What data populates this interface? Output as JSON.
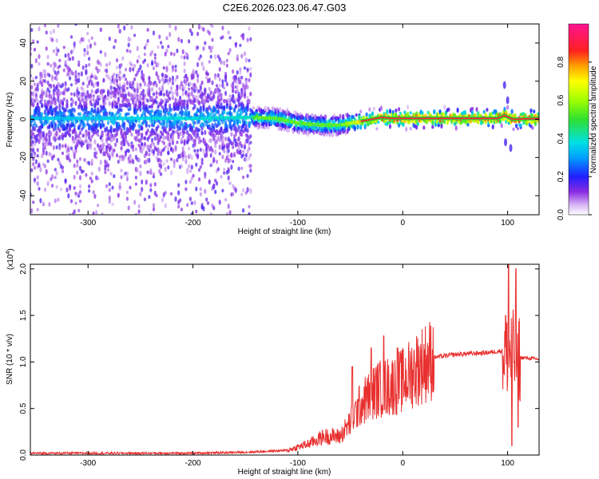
{
  "title": "C2E6.2026.023.06.47.G03",
  "chart_data": [
    {
      "type": "heatmap",
      "xlabel": "Height of straight line (km)",
      "ylabel": "Frequency (Hz)",
      "xlim": [
        -355,
        130
      ],
      "ylim": [
        -50,
        50
      ],
      "x_ticks": [
        -300,
        -200,
        -100,
        0,
        100
      ],
      "y_ticks": [
        -40,
        -20,
        0,
        20,
        40
      ],
      "colorbar": {
        "label": "Normalized spectral amplitude",
        "range": [
          0.0,
          1.0
        ],
        "ticks": [
          0.0,
          0.2,
          0.4,
          0.6,
          0.8
        ]
      },
      "ridge": [
        {
          "x": -355,
          "f": 0.5
        },
        {
          "x": -300,
          "f": 0.5
        },
        {
          "x": -250,
          "f": 0.5
        },
        {
          "x": -200,
          "f": 0.5
        },
        {
          "x": -145,
          "f": 1.0
        },
        {
          "x": -120,
          "f": 0.5
        },
        {
          "x": -100,
          "f": -2.0
        },
        {
          "x": -80,
          "f": -3.0
        },
        {
          "x": -60,
          "f": -3.0
        },
        {
          "x": -40,
          "f": -1.0
        },
        {
          "x": -20,
          "f": 1.0
        },
        {
          "x": -10,
          "f": 0.5
        },
        {
          "x": 0,
          "f": 0.5
        },
        {
          "x": 50,
          "f": 0.5
        },
        {
          "x": 90,
          "f": 0.5
        },
        {
          "x": 97,
          "f": 2.0
        },
        {
          "x": 105,
          "f": 0.0
        },
        {
          "x": 130,
          "f": 0.5
        }
      ],
      "ridge_amplitude": [
        {
          "x": -355,
          "a": 0.35
        },
        {
          "x": -145,
          "a": 0.4
        },
        {
          "x": -140,
          "a": 0.55
        },
        {
          "x": -60,
          "a": 0.55
        },
        {
          "x": -40,
          "a": 0.75
        },
        {
          "x": -15,
          "a": 0.9
        },
        {
          "x": 0,
          "a": 0.95
        },
        {
          "x": 130,
          "a": 0.95
        }
      ]
    },
    {
      "type": "line",
      "xlabel": "Height of straight line (km)",
      "ylabel": "SNR (10 * v/v)",
      "y_multiplier_label": "(x10",
      "y_multiplier_exponent": "4",
      "y_multiplier_close": ")",
      "xlim": [
        -355,
        130
      ],
      "ylim": [
        0.0,
        2.05
      ],
      "x_ticks": [
        -300,
        -200,
        -100,
        0,
        100
      ],
      "y_ticks": [
        0.0,
        0.5,
        1.0,
        1.5,
        2.0
      ],
      "y_tick_labels": [
        "0.0",
        "0.5",
        "1.0",
        "1.5",
        "2.0"
      ],
      "series": [
        {
          "color": "#e8302f",
          "envelope": [
            {
              "x": -355,
              "y": 0.02
            },
            {
              "x": -200,
              "y": 0.02
            },
            {
              "x": -150,
              "y": 0.03
            },
            {
              "x": -110,
              "y": 0.05
            },
            {
              "x": -90,
              "y": 0.12
            },
            {
              "x": -75,
              "y": 0.2
            },
            {
              "x": -60,
              "y": 0.2
            },
            {
              "x": -50,
              "y": 0.35
            },
            {
              "x": -40,
              "y": 0.55
            },
            {
              "x": -25,
              "y": 0.7
            },
            {
              "x": -10,
              "y": 0.75
            },
            {
              "x": 0,
              "y": 0.8
            },
            {
              "x": 15,
              "y": 0.95
            },
            {
              "x": 30,
              "y": 1.05
            },
            {
              "x": 50,
              "y": 1.08
            },
            {
              "x": 80,
              "y": 1.1
            },
            {
              "x": 95,
              "y": 1.12
            },
            {
              "x": 110,
              "y": 1.05
            },
            {
              "x": 130,
              "y": 1.03
            }
          ],
          "spikes": [
            {
              "x": -48,
              "y": 0.95
            },
            {
              "x": -30,
              "y": 1.15
            },
            {
              "x": -18,
              "y": 1.28
            },
            {
              "x": -5,
              "y": 1.15
            },
            {
              "x": 98,
              "y": 1.5
            },
            {
              "x": 101,
              "y": 2.05
            },
            {
              "x": 104,
              "y": 0.1
            },
            {
              "x": 108,
              "y": 2.0
            },
            {
              "x": 110,
              "y": 0.3
            }
          ]
        }
      ]
    }
  ]
}
